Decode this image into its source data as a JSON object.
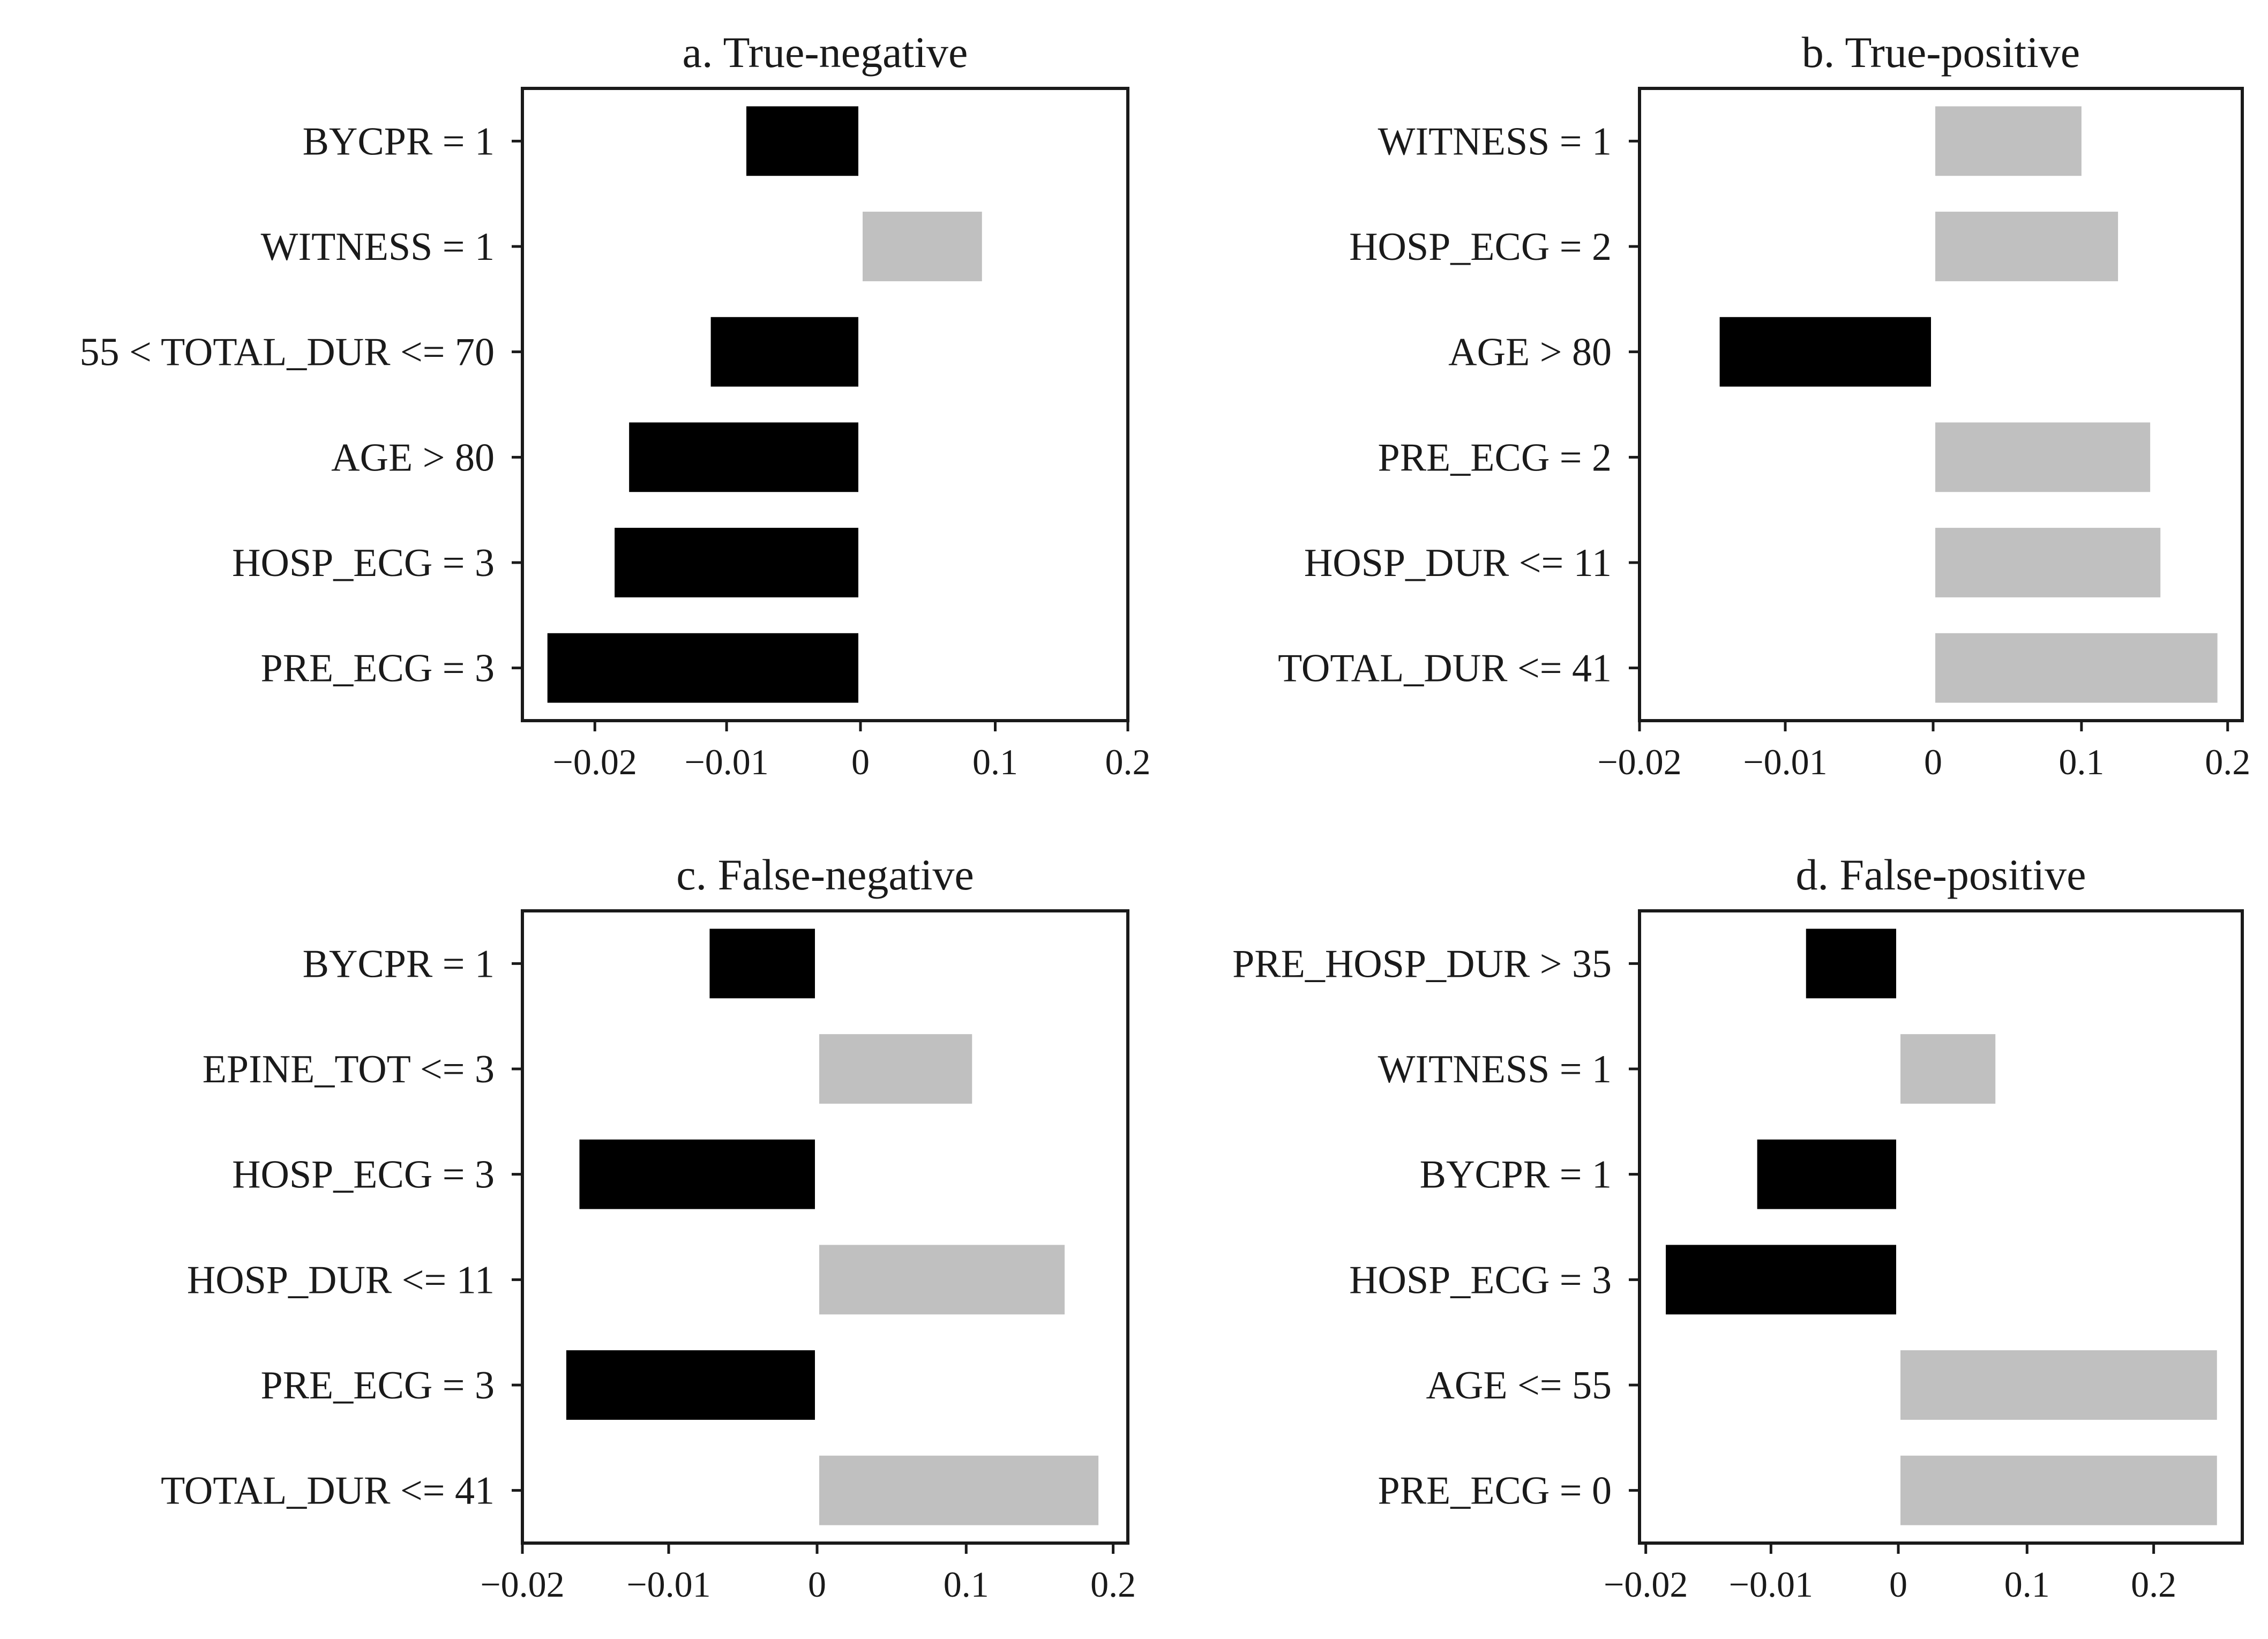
{
  "colors": {
    "negative": "#000000",
    "positive": "#c0c0c0",
    "axis": "#1a1a1a",
    "background": "#ffffff"
  },
  "chart_data": [
    {
      "type": "bar",
      "orientation": "horizontal",
      "title": "a. True-negative",
      "categories": [
        "BYCPR = 1",
        "WITNESS = 1",
        "55 < TOTAL_DUR <= 70",
        "AGE > 80",
        "HOSP_ECG = 3",
        "PRE_ECG = 3"
      ],
      "values": [
        -0.0085,
        0.09,
        -0.0112,
        -0.0174,
        -0.0185,
        -0.0236
      ],
      "xticks": [
        -0.02,
        -0.01,
        0,
        0.1,
        0.2
      ],
      "xtick_labels": [
        "−0.02",
        "−0.01",
        "0",
        "0.1",
        "0.2"
      ],
      "xlim": [
        -0.0255,
        0.2
      ],
      "xlabel": "",
      "ylabel": ""
    },
    {
      "type": "bar",
      "orientation": "horizontal",
      "title": "b. True-positive",
      "categories": [
        "WITNESS = 1",
        "HOSP_ECG = 2",
        "AGE > 80",
        "PRE_ECG = 2",
        "HOSP_DUR <= 11",
        "TOTAL_DUR <= 41"
      ],
      "values": [
        0.1,
        0.125,
        -0.0145,
        0.147,
        0.154,
        0.193
      ],
      "xticks": [
        -0.02,
        -0.01,
        0,
        0.1,
        0.2
      ],
      "xtick_labels": [
        "−0.02",
        "−0.01",
        "0",
        "0.1",
        "0.2"
      ],
      "xlim": [
        -0.02,
        0.21
      ],
      "xlabel": "",
      "ylabel": ""
    },
    {
      "type": "bar",
      "orientation": "horizontal",
      "title": "c. False-negative",
      "categories": [
        "BYCPR = 1",
        "EPINE_TOT <= 3",
        "HOSP_ECG = 3",
        "HOSP_DUR <= 11",
        "PRE_ECG = 3",
        "TOTAL_DUR <= 41"
      ],
      "values": [
        -0.0072,
        0.104,
        -0.0161,
        0.167,
        -0.017,
        0.19
      ],
      "xticks": [
        -0.02,
        -0.01,
        0,
        0.1,
        0.2
      ],
      "xtick_labels": [
        "−0.02",
        "−0.01",
        "0",
        "0.1",
        "0.2"
      ],
      "xlim": [
        -0.02,
        0.21
      ],
      "xlabel": "",
      "ylabel": ""
    },
    {
      "type": "bar",
      "orientation": "horizontal",
      "title": "d. False-positive",
      "categories": [
        "PRE_HOSP_DUR > 35",
        "WITNESS = 1",
        "BYCPR = 1",
        "HOSP_ECG = 3",
        "AGE <= 55",
        "PRE_ECG = 0"
      ],
      "values": [
        -0.0072,
        0.075,
        -0.0111,
        -0.0184,
        0.25,
        0.25
      ],
      "xticks": [
        -0.02,
        -0.01,
        0,
        0.1,
        0.2
      ],
      "xtick_labels": [
        "−0.02",
        "−0.01",
        "0",
        "0.1",
        "0.2"
      ],
      "xlim": [
        -0.0205,
        0.27
      ],
      "xlabel": "",
      "ylabel": ""
    }
  ]
}
